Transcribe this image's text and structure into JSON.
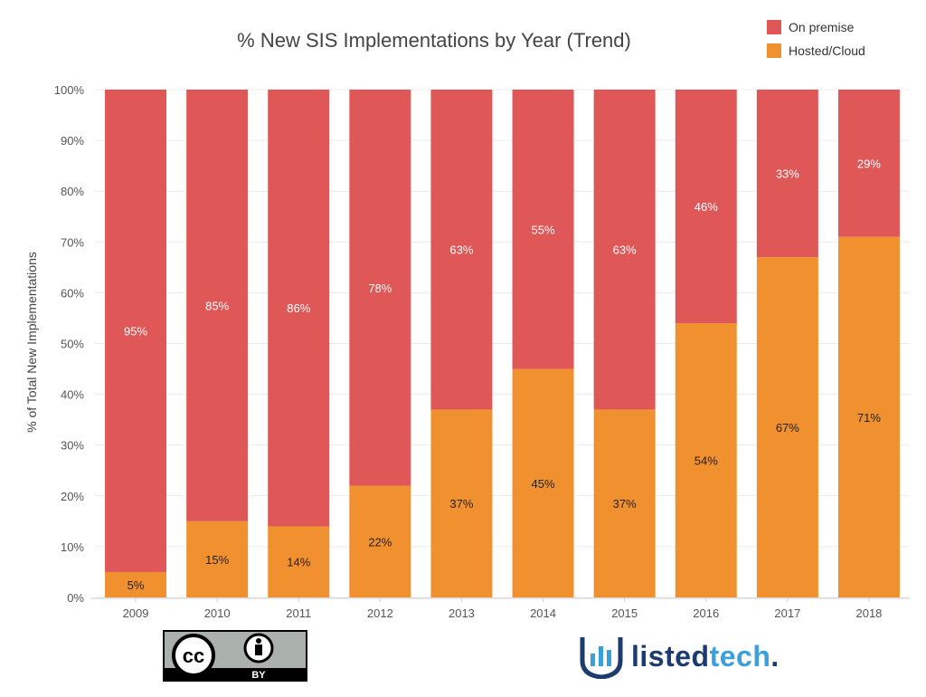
{
  "chart_data": {
    "type": "bar",
    "stacked": true,
    "title": "% New SIS Implementations by Year (Trend)",
    "xlabel": "",
    "ylabel": "% of Total New Implementations",
    "ylim": [
      0,
      100
    ],
    "y_ticks": [
      "0%",
      "10%",
      "20%",
      "30%",
      "40%",
      "50%",
      "60%",
      "70%",
      "80%",
      "90%",
      "100%"
    ],
    "categories": [
      "2009",
      "2010",
      "2011",
      "2012",
      "2013",
      "2014",
      "2015",
      "2016",
      "2017",
      "2018"
    ],
    "series": [
      {
        "name": "Hosted/Cloud",
        "color": "#f0902f",
        "values": [
          5,
          15,
          14,
          22,
          37,
          45,
          37,
          54,
          67,
          71
        ],
        "labels": [
          "5%",
          "15%",
          "14%",
          "22%",
          "37%",
          "45%",
          "37%",
          "54%",
          "67%",
          "71%"
        ]
      },
      {
        "name": "On premise",
        "color": "#e05758",
        "values": [
          95,
          85,
          86,
          78,
          63,
          55,
          63,
          46,
          33,
          29
        ],
        "labels": [
          "95%",
          "85%",
          "86%",
          "78%",
          "63%",
          "55%",
          "63%",
          "46%",
          "33%",
          "29%"
        ]
      }
    ],
    "legend_position": "top-right",
    "legend": [
      "On premise",
      "Hosted/Cloud"
    ],
    "grid": true
  },
  "footer": {
    "license_badge_text": "BY",
    "license_icon": "creative-commons-by-icon",
    "logo_text_1": "listed",
    "logo_text_2": "tech",
    "logo_dot": ".",
    "logo_icon": "bar-chart-shield-icon"
  }
}
